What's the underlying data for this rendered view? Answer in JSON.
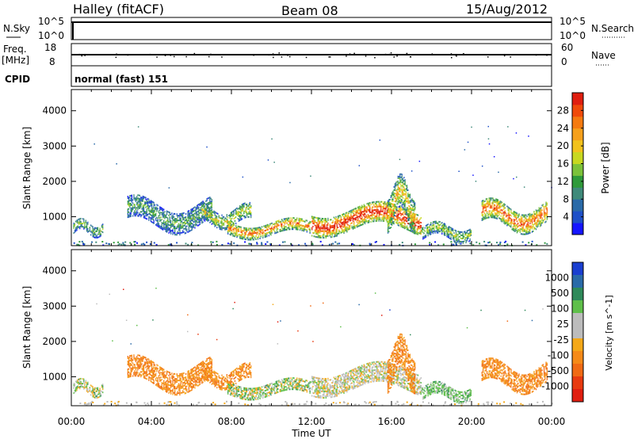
{
  "header": {
    "station": "Halley (fitACF)",
    "beam": "Beam 08",
    "date": "15/Aug/2012"
  },
  "top_panels": {
    "nsky": {
      "label": "N.Sky",
      "ticks": [
        "10^5",
        "10^0"
      ],
      "right_label": "N.Search",
      "right_ticks": [
        "10^5",
        "10^0"
      ]
    },
    "freq": {
      "label_line1": "Freq.",
      "label_line2": "[MHz]",
      "ticks": [
        "18",
        "8"
      ],
      "right_label": "Nave",
      "right_ticks": [
        "60",
        "0"
      ]
    },
    "cpid": {
      "label": "CPID",
      "value": "normal (fast) 151"
    }
  },
  "chart_data": [
    {
      "type": "heatmap",
      "name": "power",
      "ylabel": "Slant Range [km]",
      "xlabel": "",
      "xlim_hours": [
        0,
        24
      ],
      "ylim": [
        180,
        4600
      ],
      "yticks": [
        "4000",
        "3000",
        "2000",
        "1000"
      ],
      "ytick_values": [
        4000,
        3000,
        2000,
        1000
      ],
      "colorbar": {
        "label": "Power [dB]",
        "range": [
          0,
          32
        ],
        "ticks": [
          "28",
          "24",
          "20",
          "16",
          "12",
          "8",
          "4"
        ],
        "tick_values": [
          28,
          24,
          20,
          16,
          12,
          8,
          4
        ],
        "colors": [
          "#1515ff",
          "#1e50c8",
          "#2a6aa8",
          "#3f8a7a",
          "#2f9a3a",
          "#7cc23a",
          "#c8d820",
          "#f2c21c",
          "#f6a01c",
          "#f57a10",
          "#f04a0a",
          "#e01e10"
        ]
      },
      "features": [
        {
          "start": 0.1,
          "end": 1.6,
          "range_lo": 450,
          "range_hi": 900,
          "level": 0.3
        },
        {
          "start": 2.8,
          "end": 7.0,
          "range_lo": 600,
          "range_hi": 1500,
          "level": 0.25
        },
        {
          "start": 6.5,
          "end": 9.0,
          "range_lo": 700,
          "range_hi": 1300,
          "level": 0.4
        },
        {
          "start": 7.8,
          "end": 12.0,
          "range_lo": 400,
          "range_hi": 900,
          "level": 0.55
        },
        {
          "start": 12.0,
          "end": 17.5,
          "range_lo": 500,
          "range_hi": 1300,
          "level": 0.7
        },
        {
          "start": 15.8,
          "end": 17.2,
          "range_lo": 700,
          "range_hi": 2000,
          "level": 0.45
        },
        {
          "start": 17.5,
          "end": 20.0,
          "range_lo": 300,
          "range_hi": 800,
          "level": 0.35
        },
        {
          "start": 20.5,
          "end": 23.8,
          "range_lo": 600,
          "range_hi": 1400,
          "level": 0.6
        }
      ]
    },
    {
      "type": "heatmap",
      "name": "velocity",
      "ylabel": "Slant Range [km]",
      "xlabel": "Time UT",
      "xlim_hours": [
        0,
        24
      ],
      "ylim": [
        180,
        4600
      ],
      "xticks": [
        "00:00",
        "04:00",
        "08:00",
        "12:00",
        "16:00",
        "20:00",
        "00:00"
      ],
      "xtick_values": [
        0,
        4,
        8,
        12,
        16,
        20,
        24
      ],
      "yticks": [
        "4000",
        "3000",
        "2000",
        "1000"
      ],
      "ytick_values": [
        4000,
        3000,
        2000,
        1000
      ],
      "colorbar": {
        "label": "Velocity [m s^-1]",
        "ticks": [
          "1000",
          "500",
          "100",
          "25",
          "-25",
          "-100",
          "-500",
          "-1000"
        ],
        "colors": [
          "#1a3fd0",
          "#2a6aa8",
          "#2f8a5a",
          "#5fbf4a",
          "#bcbcbc",
          "#bcbcbc",
          "#f4a818",
          "#f58a18",
          "#f06a14",
          "#e83a10",
          "#e01e10"
        ]
      },
      "features": [
        {
          "start": 0.1,
          "end": 1.6,
          "range_lo": 450,
          "range_hi": 900,
          "vel": "mixed"
        },
        {
          "start": 2.8,
          "end": 7.0,
          "range_lo": 600,
          "range_hi": 1500,
          "vel": "neg"
        },
        {
          "start": 6.5,
          "end": 9.0,
          "range_lo": 700,
          "range_hi": 1300,
          "vel": "neg"
        },
        {
          "start": 7.8,
          "end": 12.0,
          "range_lo": 400,
          "range_hi": 900,
          "vel": "mixed"
        },
        {
          "start": 12.0,
          "end": 17.5,
          "range_lo": 500,
          "range_hi": 1300,
          "vel": "zero"
        },
        {
          "start": 15.8,
          "end": 17.2,
          "range_lo": 700,
          "range_hi": 2000,
          "vel": "neg"
        },
        {
          "start": 17.5,
          "end": 20.0,
          "range_lo": 300,
          "range_hi": 800,
          "vel": "pos"
        },
        {
          "start": 20.5,
          "end": 23.8,
          "range_lo": 600,
          "range_hi": 1400,
          "vel": "neg"
        }
      ]
    }
  ]
}
